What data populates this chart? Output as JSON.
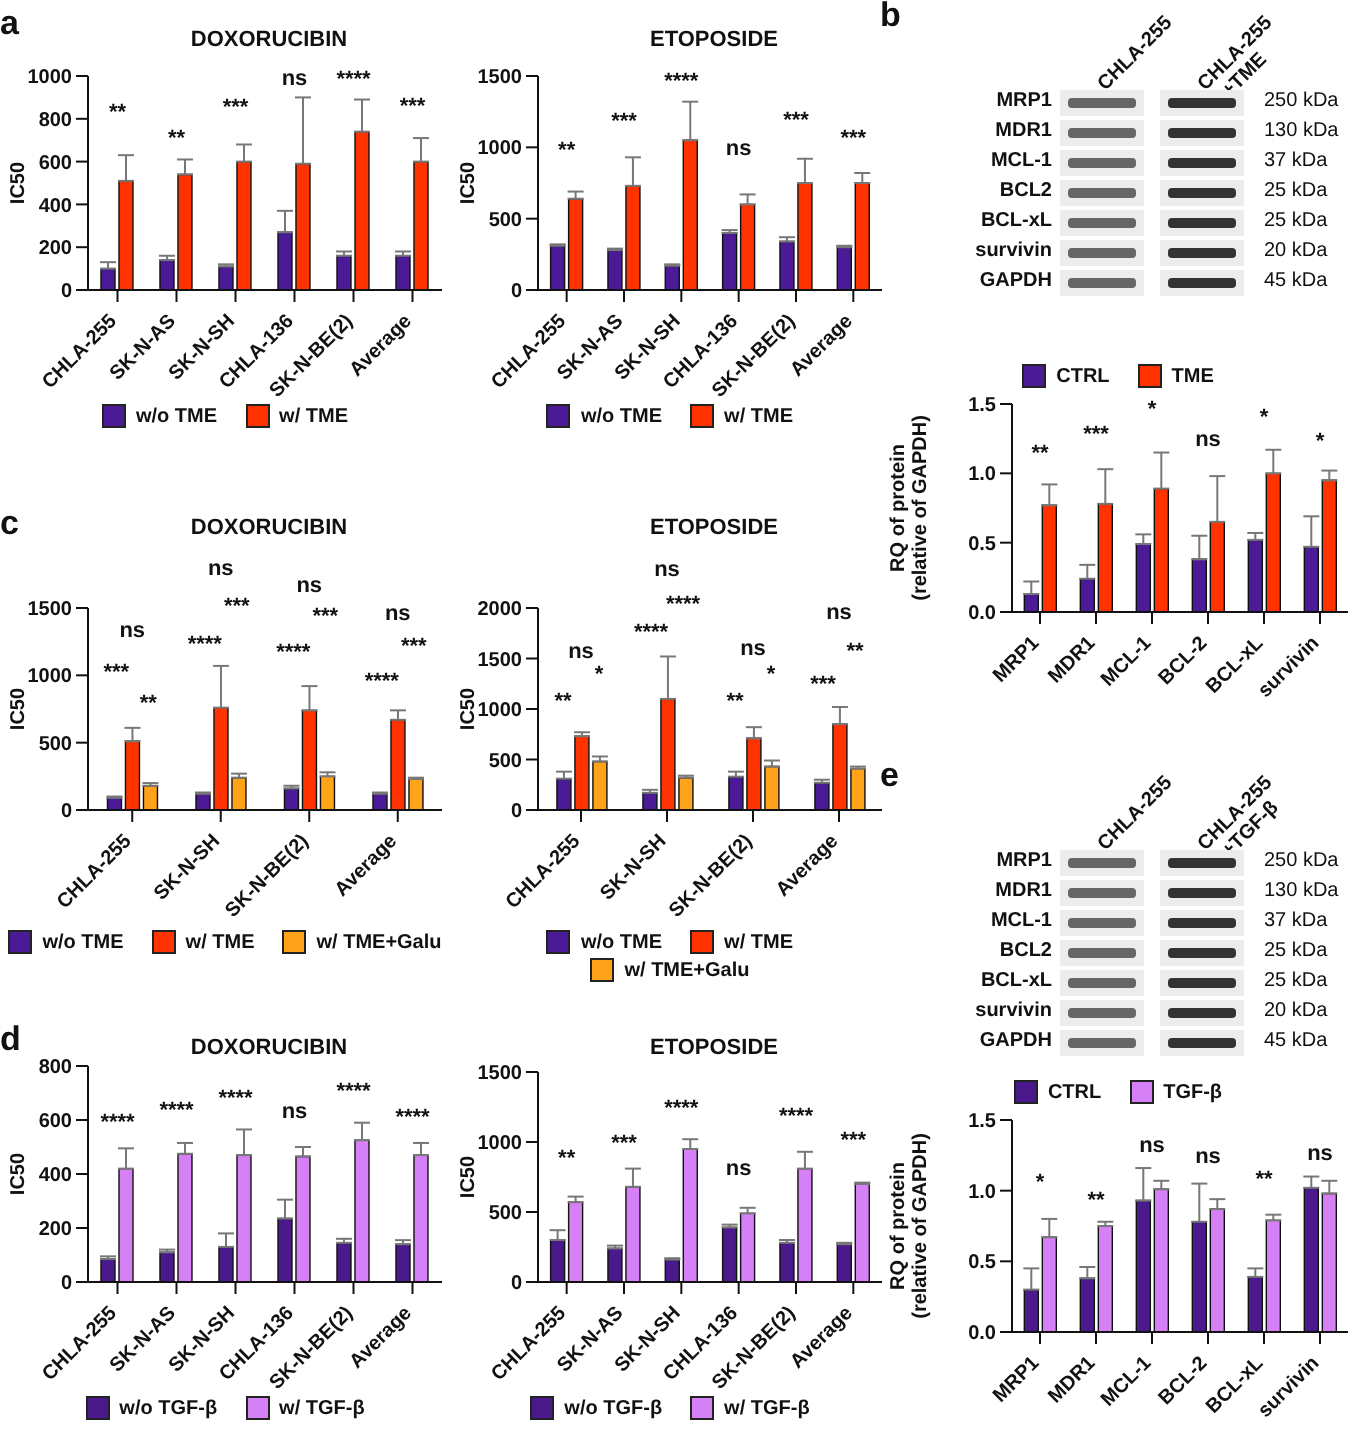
{
  "chart_data": [
    {
      "type": "bar",
      "title": "DOXORUCIBIN",
      "ylabel": "IC50",
      "categories": [
        "CHLA-255",
        "SK-N-AS",
        "SK-N-SH",
        "CHLA-136",
        "SK-N-BE(2)",
        "Average"
      ],
      "ylim": [
        0,
        1000
      ],
      "yticks": [
        0,
        200,
        400,
        600,
        800,
        1000
      ],
      "legend": "bottom",
      "series": [
        {
          "name": "w/o TME",
          "color": "#4b1a96",
          "values": [
            100,
            140,
            110,
            270,
            160,
            160
          ],
          "errors": [
            [
              100,
              130
            ],
            [
              140,
              160
            ],
            [
              110,
              120
            ],
            [
              270,
              370
            ],
            [
              160,
              180
            ],
            [
              160,
              180
            ]
          ]
        },
        {
          "name": "w/ TME",
          "color": "#ff3300",
          "values": [
            510,
            540,
            600,
            590,
            740,
            600
          ],
          "errors": [
            [
              510,
              630
            ],
            [
              540,
              610
            ],
            [
              600,
              680
            ],
            [
              590,
              900
            ],
            [
              740,
              890
            ],
            [
              600,
              710
            ]
          ]
        }
      ],
      "annotations": [
        "a",
        "**",
        "**",
        "***",
        "ns",
        "****",
        "***"
      ]
    },
    {
      "type": "bar",
      "title": "ETOPOSIDE",
      "ylabel": "IC50",
      "categories": [
        "CHLA-255",
        "SK-N-AS",
        "SK-N-SH",
        "CHLA-136",
        "SK-N-BE(2)",
        "Average"
      ],
      "ylim": [
        0,
        1500
      ],
      "yticks": [
        0,
        500,
        1000,
        1500
      ],
      "legend": "bottom",
      "series": [
        {
          "name": "w/o TME",
          "color": "#4b1a96",
          "values": [
            310,
            280,
            170,
            400,
            340,
            300
          ],
          "errors": [
            [
              310,
              320
            ],
            [
              280,
              290
            ],
            [
              170,
              180
            ],
            [
              400,
              420
            ],
            [
              340,
              370
            ],
            [
              300,
              310
            ]
          ]
        },
        {
          "name": "w/ TME",
          "color": "#ff3300",
          "values": [
            640,
            730,
            1050,
            600,
            750,
            750
          ],
          "errors": [
            [
              640,
              690
            ],
            [
              730,
              930
            ],
            [
              1050,
              1320
            ],
            [
              600,
              670
            ],
            [
              750,
              920
            ],
            [
              750,
              820
            ]
          ]
        }
      ],
      "annotations": [
        "**",
        "***",
        "****",
        "ns",
        "***",
        "***"
      ]
    },
    {
      "type": "other",
      "categories": [
        "CHLA-255",
        "CHLA-255 +TME"
      ],
      "y_categories": [
        "MRP1",
        "MDR1",
        "MCL-1",
        "BCL2",
        "BCL-xL",
        "survivin",
        "GAPDH"
      ],
      "y2_categories": [
        "250 kDa",
        "130 kDa",
        "37 kDa",
        "25 kDa",
        "25 kDa",
        "20 kDa",
        "45 kDa"
      ],
      "annotations": [
        "b"
      ]
    },
    {
      "type": "bar",
      "ylabel": "RQ of protein (relative of GAPDH)",
      "categories": [
        "MRP1",
        "MDR1",
        "MCL-1",
        "BCL-2",
        "BCL-xL",
        "survivin"
      ],
      "ylim": [
        0,
        1.5
      ],
      "yticks": [
        {
          "value": 0,
          "label": "0.0"
        },
        {
          "value": 0.5,
          "label": "0.5"
        },
        {
          "value": 1,
          "label": "1.0"
        },
        {
          "value": 1.5,
          "label": "1.5"
        }
      ],
      "legend": "top",
      "series": [
        {
          "name": "CTRL",
          "color": "#4b1a96",
          "values": [
            0.13,
            0.24,
            0.49,
            0.38,
            0.52,
            0.47
          ],
          "errors": [
            [
              0.13,
              0.22
            ],
            [
              0.24,
              0.34
            ],
            [
              0.49,
              0.56
            ],
            [
              0.38,
              0.55
            ],
            [
              0.52,
              0.57
            ],
            [
              0.47,
              0.69
            ]
          ]
        },
        {
          "name": "TME",
          "color": "#ff3300",
          "values": [
            0.77,
            0.78,
            0.89,
            0.65,
            1.0,
            0.95
          ],
          "errors": [
            [
              0.77,
              0.92
            ],
            [
              0.78,
              1.03
            ],
            [
              0.89,
              1.15
            ],
            [
              0.65,
              0.98
            ],
            [
              1.0,
              1.17
            ],
            [
              0.95,
              1.02
            ]
          ]
        }
      ],
      "annotations": [
        "**",
        "***",
        "*",
        "ns",
        "*",
        "*"
      ]
    },
    {
      "type": "bar",
      "title": "DOXORUCIBIN",
      "ylabel": "IC50",
      "categories": [
        "CHLA-255",
        "SK-N-SH",
        "SK-N-BE(2)",
        "Average"
      ],
      "ylim": [
        0,
        1500
      ],
      "yticks": [
        0,
        500,
        1000,
        1500
      ],
      "legend": "bottom",
      "series": [
        {
          "name": "w/o TME",
          "color": "#4b1a96",
          "values": [
            90,
            120,
            160,
            120
          ],
          "errors": [
            [
              90,
              100
            ],
            [
              120,
              130
            ],
            [
              160,
              180
            ],
            [
              120,
              130
            ]
          ]
        },
        {
          "name": "w/ TME",
          "color": "#ff3300",
          "values": [
            510,
            760,
            740,
            670
          ],
          "errors": [
            [
              510,
              610
            ],
            [
              760,
              1070
            ],
            [
              740,
              920
            ],
            [
              670,
              740
            ]
          ]
        },
        {
          "name": "w/ TME+Galu",
          "color": "#ffa31a",
          "values": [
            180,
            240,
            250,
            230
          ],
          "errors": [
            [
              180,
              200
            ],
            [
              240,
              270
            ],
            [
              250,
              280
            ],
            [
              230,
              240
            ]
          ]
        }
      ],
      "annotations": [
        "c",
        "ns",
        "***",
        "**",
        "ns",
        "***",
        "****",
        "ns",
        "***",
        "****",
        "ns",
        "***",
        "****"
      ]
    },
    {
      "type": "bar",
      "title": "ETOPOSIDE",
      "ylabel": "IC50",
      "categories": [
        "CHLA-255",
        "SK-N-SH",
        "SK-N-BE(2)",
        "Average"
      ],
      "ylim": [
        0,
        2000
      ],
      "yticks": [
        0,
        500,
        1000,
        1500,
        2000
      ],
      "legend": "bottom",
      "series": [
        {
          "name": "w/o TME",
          "color": "#4b1a96",
          "values": [
            310,
            170,
            330,
            270
          ],
          "errors": [
            [
              310,
              380
            ],
            [
              170,
              200
            ],
            [
              330,
              380
            ],
            [
              270,
              300
            ]
          ]
        },
        {
          "name": "w/ TME",
          "color": "#ff3300",
          "values": [
            730,
            1100,
            710,
            850
          ],
          "errors": [
            [
              730,
              770
            ],
            [
              1100,
              1520
            ],
            [
              710,
              820
            ],
            [
              850,
              1020
            ]
          ]
        },
        {
          "name": "w/ TME+Galu",
          "color": "#ffa31a",
          "values": [
            480,
            320,
            430,
            410
          ],
          "errors": [
            [
              480,
              530
            ],
            [
              320,
              340
            ],
            [
              430,
              490
            ],
            [
              410,
              430
            ]
          ]
        }
      ],
      "annotations": [
        "ns",
        "**",
        "*",
        "ns",
        "****",
        "****",
        "ns",
        "**",
        "*",
        "ns",
        "**",
        "***"
      ]
    },
    {
      "type": "bar",
      "title": "DOXORUCIBIN",
      "ylabel": "IC50",
      "categories": [
        "CHLA-255",
        "SK-N-AS",
        "SK-N-SH",
        "CHLA-136",
        "SK-N-BE(2)",
        "Average"
      ],
      "ylim": [
        0,
        800
      ],
      "yticks": [
        0,
        200,
        400,
        600,
        800
      ],
      "legend": "bottom",
      "series": [
        {
          "name": "w/o TGF-β",
          "color": "#4a1a8c",
          "values": [
            85,
            110,
            130,
            235,
            145,
            140
          ],
          "errors": [
            [
              85,
              95
            ],
            [
              110,
              120
            ],
            [
              130,
              180
            ],
            [
              235,
              305
            ],
            [
              145,
              160
            ],
            [
              140,
              155
            ]
          ]
        },
        {
          "name": "w/ TGF-β",
          "color": "#d580f5",
          "values": [
            420,
            475,
            470,
            465,
            525,
            470
          ],
          "errors": [
            [
              420,
              495
            ],
            [
              475,
              515
            ],
            [
              470,
              565
            ],
            [
              465,
              500
            ],
            [
              525,
              590
            ],
            [
              470,
              515
            ]
          ]
        }
      ],
      "annotations": [
        "d",
        "****",
        "****",
        "****",
        "ns",
        "****",
        "****"
      ]
    },
    {
      "type": "bar",
      "title": "ETOPOSIDE",
      "ylabel": "IC50",
      "categories": [
        "CHLA-255",
        "SK-N-AS",
        "SK-N-SH",
        "CHLA-136",
        "SK-N-BE(2)",
        "Average"
      ],
      "ylim": [
        0,
        1500
      ],
      "yticks": [
        0,
        500,
        1000,
        1500
      ],
      "legend": "bottom",
      "series": [
        {
          "name": "w/o TGF-β",
          "color": "#4a1a8c",
          "values": [
            300,
            240,
            160,
            390,
            280,
            270
          ],
          "errors": [
            [
              300,
              370
            ],
            [
              240,
              260
            ],
            [
              160,
              170
            ],
            [
              390,
              410
            ],
            [
              280,
              300
            ],
            [
              270,
              280
            ]
          ]
        },
        {
          "name": "w/ TGF-β",
          "color": "#d580f5",
          "values": [
            570,
            680,
            950,
            490,
            810,
            700
          ],
          "errors": [
            [
              570,
              610
            ],
            [
              680,
              810
            ],
            [
              950,
              1020
            ],
            [
              490,
              530
            ],
            [
              810,
              930
            ],
            [
              700,
              710
            ]
          ]
        }
      ],
      "annotations": [
        "**",
        "***",
        "****",
        "ns",
        "****",
        "***"
      ]
    },
    {
      "type": "other",
      "categories": [
        "CHLA-255",
        "CHLA-255 +TGF-β"
      ],
      "y_categories": [
        "MRP1",
        "MDR1",
        "MCL-1",
        "BCL2",
        "BCL-xL",
        "survivin",
        "GAPDH"
      ],
      "y2_categories": [
        "250 kDa",
        "130 kDa",
        "37 kDa",
        "25 kDa",
        "25 kDa",
        "20 kDa",
        "45 kDa"
      ],
      "annotations": [
        "e"
      ]
    },
    {
      "type": "bar",
      "ylabel": "RQ of protein (relative of GAPDH)",
      "categories": [
        "MRP1",
        "MDR1",
        "MCL-1",
        "BCL-2",
        "BCL-xL",
        "survivin"
      ],
      "ylim": [
        0,
        1.5
      ],
      "yticks": [
        {
          "value": 0,
          "label": "0.0"
        },
        {
          "value": 0.5,
          "label": "0.5"
        },
        {
          "value": 1,
          "label": "1.0"
        },
        {
          "value": 1.5,
          "label": "1.5"
        }
      ],
      "legend": "top",
      "series": [
        {
          "name": "CTRL",
          "color": "#4a1a8c",
          "values": [
            0.3,
            0.38,
            0.93,
            0.78,
            0.39,
            1.02
          ],
          "errors": [
            [
              0.3,
              0.45
            ],
            [
              0.38,
              0.46
            ],
            [
              0.93,
              1.16
            ],
            [
              0.78,
              1.05
            ],
            [
              0.39,
              0.45
            ],
            [
              1.02,
              1.1
            ]
          ]
        },
        {
          "name": "TGF-β",
          "color": "#d580f5",
          "values": [
            0.67,
            0.75,
            1.01,
            0.87,
            0.79,
            0.98
          ],
          "errors": [
            [
              0.67,
              0.8
            ],
            [
              0.75,
              0.78
            ],
            [
              1.01,
              1.07
            ],
            [
              0.87,
              0.94
            ],
            [
              0.79,
              0.83
            ],
            [
              0.98,
              1.07
            ]
          ]
        }
      ],
      "annotations": [
        "*",
        "**",
        "ns",
        "ns",
        "**",
        "ns"
      ]
    }
  ]
}
